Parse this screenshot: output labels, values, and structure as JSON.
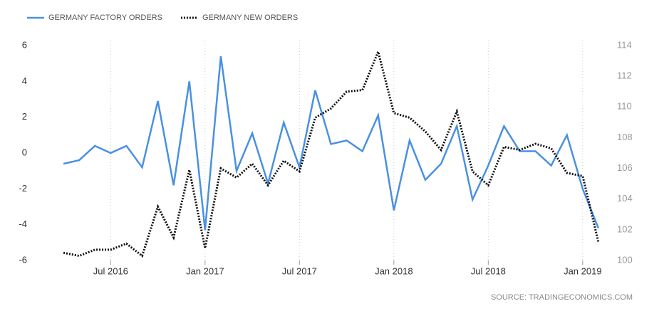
{
  "chart_data": {
    "type": "line",
    "source": "SOURCE:  TRADINGECONOMICS.COM",
    "x": [
      "2016-04",
      "2016-05",
      "2016-06",
      "2016-07",
      "2016-08",
      "2016-09",
      "2016-10",
      "2016-11",
      "2016-12",
      "2017-01",
      "2017-02",
      "2017-03",
      "2017-04",
      "2017-05",
      "2017-06",
      "2017-07",
      "2017-08",
      "2017-09",
      "2017-10",
      "2017-11",
      "2017-12",
      "2018-01",
      "2018-02",
      "2018-03",
      "2018-04",
      "2018-05",
      "2018-06",
      "2018-07",
      "2018-08",
      "2018-09",
      "2018-10",
      "2018-11",
      "2018-12",
      "2019-01",
      "2019-02"
    ],
    "series": [
      {
        "name": "GERMANY FACTORY ORDERS",
        "color": "#4a90e2",
        "dash": "solid",
        "values": [
          -0.6,
          -0.4,
          0.4,
          0,
          0.4,
          -0.8,
          2.9,
          -1.8,
          4.0,
          -4.3,
          5.4,
          -1.0,
          1.1,
          -1.7,
          1.7,
          -0.8,
          3.5,
          0.5,
          0.7,
          0.1,
          2.1,
          -3.2,
          0.7,
          -1.5,
          -0.6,
          1.5,
          -2.6,
          -0.7,
          1.5,
          0.1,
          0.1,
          -0.7,
          1.0,
          -2.0,
          -4.2
        ]
      },
      {
        "name": "GERMANY NEW ORDERS",
        "color": "#111111",
        "dash": "dotted",
        "axis": "y2",
        "values": [
          100.5,
          100.3,
          100.7,
          100.7,
          101.1,
          100.3,
          103.5,
          101.5,
          105.9,
          100.8,
          106.0,
          105.4,
          106.3,
          104.9,
          106.5,
          105.8,
          109.3,
          109.9,
          111.0,
          111.1,
          113.6,
          109.6,
          109.3,
          108.4,
          107.2,
          109.7,
          105.8,
          104.9,
          107.4,
          107.2,
          107.6,
          107.3,
          105.7,
          105.5,
          101.2
        ]
      }
    ],
    "xlim": [
      "2016-03",
      "2019-03"
    ],
    "xticks": [
      {
        "value": "2016-07",
        "label": "Jul 2016"
      },
      {
        "value": "2017-01",
        "label": "Jan 2017"
      },
      {
        "value": "2017-07",
        "label": "Jul 2017"
      },
      {
        "value": "2018-01",
        "label": "Jan 2018"
      },
      {
        "value": "2018-07",
        "label": "Jul 2018"
      },
      {
        "value": "2019-01",
        "label": "Jan 2019"
      }
    ],
    "ylim": [
      -6,
      6
    ],
    "yticks": [
      -6,
      -4,
      -2,
      0,
      2,
      4,
      6
    ],
    "y2lim": [
      100,
      114
    ],
    "y2ticks": [
      100,
      102,
      104,
      106,
      108,
      110,
      112,
      114
    ],
    "grid": "x",
    "legend": "top"
  }
}
